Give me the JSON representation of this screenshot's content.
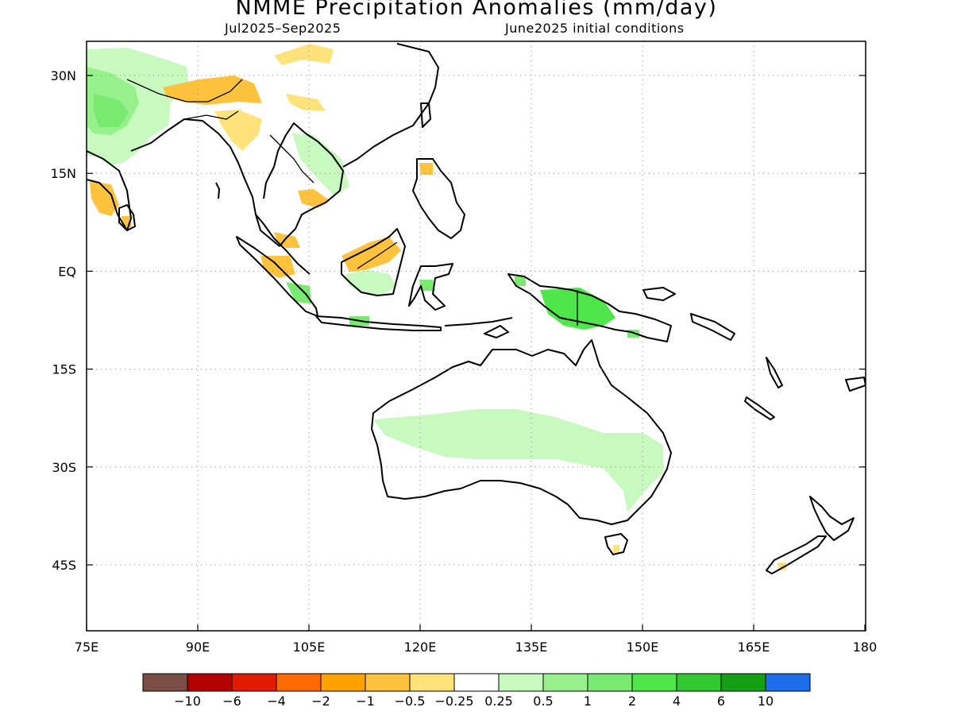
{
  "title": "NMME Precipitation Anomalies (mm/day)",
  "subtitle_left": "Jul2025–Sep2025",
  "subtitle_right": "June2025 initial conditions",
  "map": {
    "lon_range": [
      75,
      180
    ],
    "lat_range": [
      -52,
      35
    ],
    "lon_ticks": [
      "75E",
      "90E",
      "105E",
      "120E",
      "135E",
      "150E",
      "165E",
      "180"
    ],
    "lat_ticks": [
      "30N",
      "15N",
      "EQ",
      "15S",
      "30S",
      "45S"
    ],
    "grid": "dotted"
  },
  "colorbar": {
    "colors": [
      "#7a4e45",
      "#b50000",
      "#e01b00",
      "#ff6a00",
      "#ffa200",
      "#ffc23c",
      "#ffe27a",
      "#ffffff",
      "#c8fac0",
      "#96f08c",
      "#78ea70",
      "#4ee64a",
      "#32c832",
      "#14a014",
      "#1e6eeb"
    ],
    "labels": [
      "−10",
      "−6",
      "−4",
      "−2",
      "−1",
      "−0.5",
      "−0.25",
      "0.25",
      "0.5",
      "1",
      "2",
      "4",
      "6",
      "10"
    ]
  }
}
